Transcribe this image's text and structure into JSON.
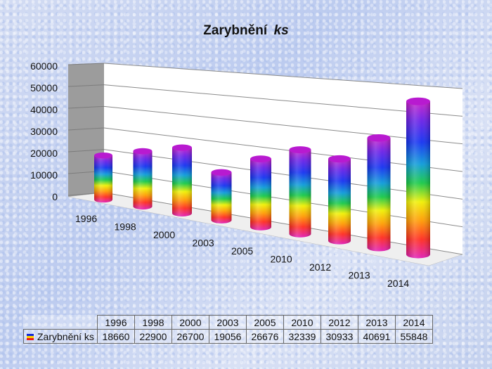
{
  "chart_data": {
    "type": "bar",
    "style": "3d-cylinder",
    "title": "Zarybnění",
    "title_unit": "ks",
    "categories": [
      "1996",
      "1998",
      "2000",
      "2003",
      "2005",
      "2010",
      "2012",
      "2013",
      "2014"
    ],
    "series": [
      {
        "name": "Zarybnění ks",
        "values": [
          18660,
          22900,
          26700,
          19056,
          26676,
          32339,
          30933,
          40691,
          55848
        ]
      }
    ],
    "yticks": [
      "0",
      "10000",
      "20000",
      "30000",
      "40000",
      "50000",
      "60000"
    ],
    "ylim": [
      0,
      60000
    ],
    "grid": true,
    "data_table": true,
    "colors": {
      "wall": "#ffffff",
      "side_wall": "#9c9c9c",
      "grid": "#8a8a8a"
    }
  },
  "table": {
    "series_label": "Zarybnění ks"
  }
}
